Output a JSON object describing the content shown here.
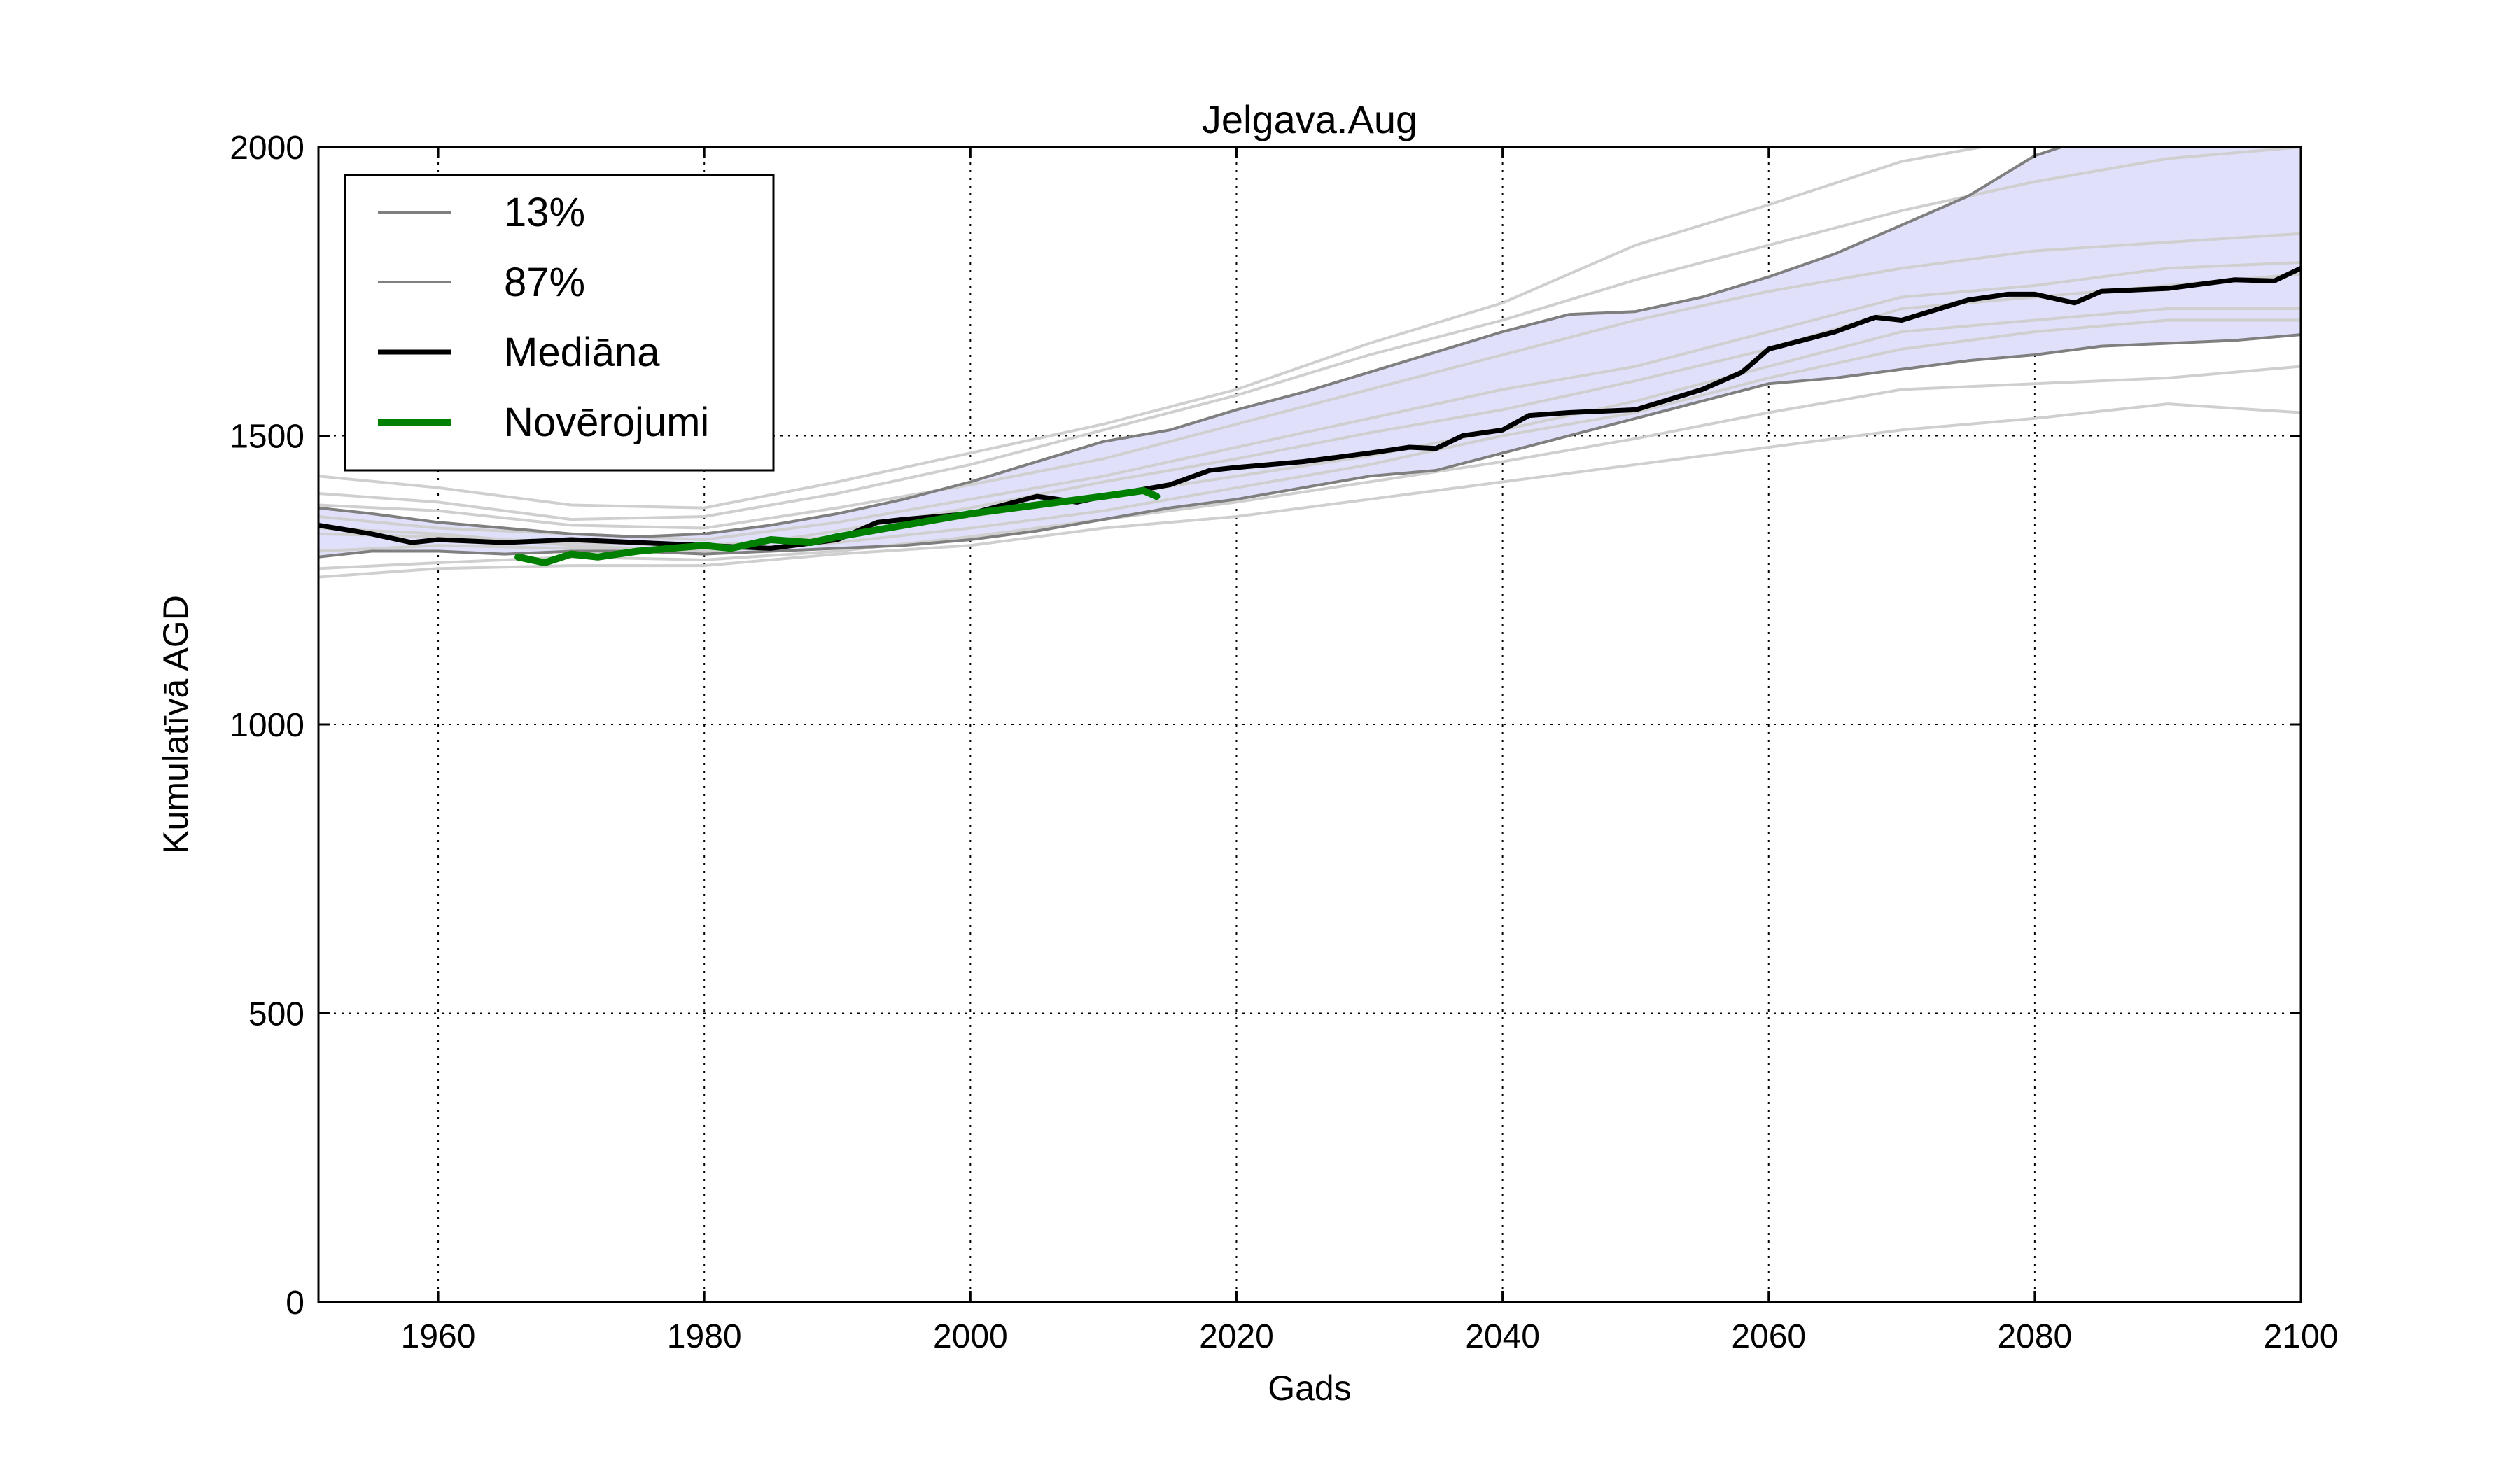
{
  "chart_data": {
    "type": "line",
    "title": "Jelgava.Aug",
    "xlabel": "Gads",
    "ylabel": "Kumulatīvā AGD",
    "xlim": [
      1951,
      2100
    ],
    "ylim": [
      0,
      2000
    ],
    "xticks": [
      1960,
      1980,
      2000,
      2020,
      2040,
      2060,
      2080,
      2100
    ],
    "yticks": [
      0,
      500,
      1000,
      1500,
      2000
    ],
    "grid": true,
    "grid_style": "dotted",
    "legend_position": "upper-left",
    "band_color": "#e0e0fb",
    "series": [
      {
        "name": "13%",
        "color": "#7f7f7f",
        "points": [
          [
            1951,
            1290
          ],
          [
            1955,
            1300
          ],
          [
            1960,
            1300
          ],
          [
            1965,
            1295
          ],
          [
            1970,
            1300
          ],
          [
            1975,
            1300
          ],
          [
            1980,
            1295
          ],
          [
            1985,
            1300
          ],
          [
            1990,
            1305
          ],
          [
            1995,
            1310
          ],
          [
            2000,
            1320
          ],
          [
            2005,
            1335
          ],
          [
            2010,
            1355
          ],
          [
            2015,
            1375
          ],
          [
            2020,
            1390
          ],
          [
            2025,
            1410
          ],
          [
            2030,
            1430
          ],
          [
            2035,
            1440
          ],
          [
            2040,
            1470
          ],
          [
            2045,
            1500
          ],
          [
            2050,
            1530
          ],
          [
            2055,
            1560
          ],
          [
            2060,
            1590
          ],
          [
            2065,
            1600
          ],
          [
            2070,
            1615
          ],
          [
            2075,
            1630
          ],
          [
            2080,
            1640
          ],
          [
            2085,
            1655
          ],
          [
            2090,
            1660
          ],
          [
            2095,
            1665
          ],
          [
            2100,
            1675
          ]
        ]
      },
      {
        "name": "87%",
        "color": "#7f7f7f",
        "points": [
          [
            1951,
            1375
          ],
          [
            1955,
            1365
          ],
          [
            1960,
            1350
          ],
          [
            1965,
            1340
          ],
          [
            1970,
            1330
          ],
          [
            1975,
            1325
          ],
          [
            1980,
            1330
          ],
          [
            1985,
            1345
          ],
          [
            1990,
            1365
          ],
          [
            1995,
            1390
          ],
          [
            2000,
            1420
          ],
          [
            2005,
            1455
          ],
          [
            2010,
            1490
          ],
          [
            2015,
            1510
          ],
          [
            2020,
            1545
          ],
          [
            2025,
            1575
          ],
          [
            2030,
            1610
          ],
          [
            2035,
            1645
          ],
          [
            2040,
            1680
          ],
          [
            2045,
            1710
          ],
          [
            2050,
            1715
          ],
          [
            2055,
            1740
          ],
          [
            2060,
            1775
          ],
          [
            2065,
            1815
          ],
          [
            2070,
            1865
          ],
          [
            2075,
            1915
          ],
          [
            2080,
            1985
          ],
          [
            2082,
            2000
          ]
        ]
      },
      {
        "name": "Mediāna",
        "color": "#000000",
        "points": [
          [
            1951,
            1345
          ],
          [
            1955,
            1330
          ],
          [
            1958,
            1315
          ],
          [
            1960,
            1320
          ],
          [
            1965,
            1315
          ],
          [
            1970,
            1320
          ],
          [
            1975,
            1315
          ],
          [
            1980,
            1310
          ],
          [
            1985,
            1305
          ],
          [
            1990,
            1320
          ],
          [
            1993,
            1350
          ],
          [
            1995,
            1355
          ],
          [
            2000,
            1365
          ],
          [
            2005,
            1395
          ],
          [
            2008,
            1385
          ],
          [
            2010,
            1395
          ],
          [
            2015,
            1415
          ],
          [
            2018,
            1440
          ],
          [
            2020,
            1445
          ],
          [
            2025,
            1455
          ],
          [
            2030,
            1470
          ],
          [
            2033,
            1480
          ],
          [
            2035,
            1478
          ],
          [
            2037,
            1500
          ],
          [
            2040,
            1510
          ],
          [
            2042,
            1535
          ],
          [
            2045,
            1540
          ],
          [
            2050,
            1545
          ],
          [
            2055,
            1580
          ],
          [
            2058,
            1610
          ],
          [
            2060,
            1650
          ],
          [
            2065,
            1680
          ],
          [
            2068,
            1705
          ],
          [
            2070,
            1700
          ],
          [
            2075,
            1735
          ],
          [
            2078,
            1745
          ],
          [
            2080,
            1745
          ],
          [
            2083,
            1730
          ],
          [
            2085,
            1750
          ],
          [
            2090,
            1755
          ],
          [
            2095,
            1770
          ],
          [
            2098,
            1768
          ],
          [
            2100,
            1790
          ]
        ]
      },
      {
        "name": "Novērojumi",
        "color": "#008000",
        "points": [
          [
            1966,
            1290
          ],
          [
            1968,
            1280
          ],
          [
            1970,
            1295
          ],
          [
            1972,
            1290
          ],
          [
            1975,
            1300
          ],
          [
            1980,
            1310
          ],
          [
            1982,
            1305
          ],
          [
            1985,
            1320
          ],
          [
            1988,
            1315
          ],
          [
            1990,
            1325
          ],
          [
            1995,
            1345
          ],
          [
            2000,
            1365
          ],
          [
            2005,
            1380
          ],
          [
            2010,
            1395
          ],
          [
            2013,
            1405
          ],
          [
            2014,
            1395
          ]
        ]
      }
    ],
    "ensemble": [
      [
        [
          1951,
          1430
        ],
        [
          1960,
          1410
        ],
        [
          1970,
          1380
        ],
        [
          1980,
          1375
        ],
        [
          1990,
          1420
        ],
        [
          2000,
          1470
        ],
        [
          2010,
          1520
        ],
        [
          2020,
          1580
        ],
        [
          2030,
          1660
        ],
        [
          2040,
          1730
        ],
        [
          2050,
          1830
        ],
        [
          2060,
          1900
        ],
        [
          2070,
          1975
        ],
        [
          2076,
          2000
        ]
      ],
      [
        [
          1951,
          1400
        ],
        [
          1960,
          1385
        ],
        [
          1970,
          1355
        ],
        [
          1980,
          1360
        ],
        [
          1990,
          1400
        ],
        [
          2000,
          1450
        ],
        [
          2010,
          1510
        ],
        [
          2020,
          1570
        ],
        [
          2030,
          1640
        ],
        [
          2040,
          1700
        ],
        [
          2050,
          1770
        ],
        [
          2060,
          1830
        ],
        [
          2070,
          1890
        ],
        [
          2080,
          1940
        ],
        [
          2090,
          1980
        ],
        [
          2100,
          2000
        ]
      ],
      [
        [
          1951,
          1380
        ],
        [
          1960,
          1370
        ],
        [
          1970,
          1345
        ],
        [
          1980,
          1340
        ],
        [
          1990,
          1375
        ],
        [
          2000,
          1415
        ],
        [
          2010,
          1460
        ],
        [
          2020,
          1520
        ],
        [
          2030,
          1580
        ],
        [
          2040,
          1640
        ],
        [
          2050,
          1700
        ],
        [
          2060,
          1750
        ],
        [
          2070,
          1790
        ],
        [
          2080,
          1820
        ],
        [
          2090,
          1835
        ],
        [
          2100,
          1850
        ]
      ],
      [
        [
          1951,
          1360
        ],
        [
          1960,
          1340
        ],
        [
          1970,
          1330
        ],
        [
          1980,
          1320
        ],
        [
          1990,
          1350
        ],
        [
          2000,
          1390
        ],
        [
          2010,
          1430
        ],
        [
          2020,
          1480
        ],
        [
          2030,
          1530
        ],
        [
          2040,
          1580
        ],
        [
          2050,
          1620
        ],
        [
          2060,
          1680
        ],
        [
          2070,
          1740
        ],
        [
          2080,
          1760
        ],
        [
          2090,
          1790
        ],
        [
          2100,
          1800
        ]
      ],
      [
        [
          1951,
          1330
        ],
        [
          1960,
          1325
        ],
        [
          1970,
          1315
        ],
        [
          1980,
          1310
        ],
        [
          1990,
          1325
        ],
        [
          2000,
          1360
        ],
        [
          2010,
          1395
        ],
        [
          2020,
          1430
        ],
        [
          2030,
          1465
        ],
        [
          2040,
          1510
        ],
        [
          2050,
          1560
        ],
        [
          2060,
          1620
        ],
        [
          2070,
          1680
        ],
        [
          2080,
          1700
        ],
        [
          2090,
          1720
        ],
        [
          2100,
          1720
        ]
      ],
      [
        [
          1951,
          1300
        ],
        [
          1960,
          1310
        ],
        [
          1970,
          1305
        ],
        [
          1980,
          1300
        ],
        [
          1990,
          1315
        ],
        [
          2000,
          1340
        ],
        [
          2010,
          1370
        ],
        [
          2020,
          1410
        ],
        [
          2030,
          1450
        ],
        [
          2040,
          1500
        ],
        [
          2050,
          1540
        ],
        [
          2060,
          1600
        ],
        [
          2070,
          1650
        ],
        [
          2080,
          1680
        ],
        [
          2090,
          1700
        ],
        [
          2100,
          1700
        ]
      ],
      [
        [
          1951,
          1270
        ],
        [
          1960,
          1280
        ],
        [
          1970,
          1290
        ],
        [
          1980,
          1285
        ],
        [
          1990,
          1300
        ],
        [
          2000,
          1325
        ],
        [
          2010,
          1355
        ],
        [
          2020,
          1385
        ],
        [
          2030,
          1420
        ],
        [
          2040,
          1455
        ],
        [
          2050,
          1495
        ],
        [
          2060,
          1540
        ],
        [
          2070,
          1580
        ],
        [
          2080,
          1590
        ],
        [
          2090,
          1600
        ],
        [
          2100,
          1620
        ]
      ],
      [
        [
          1951,
          1255
        ],
        [
          1960,
          1270
        ],
        [
          1970,
          1275
        ],
        [
          1980,
          1275
        ],
        [
          1990,
          1295
        ],
        [
          2000,
          1310
        ],
        [
          2010,
          1340
        ],
        [
          2020,
          1360
        ],
        [
          2030,
          1390
        ],
        [
          2040,
          1420
        ],
        [
          2050,
          1450
        ],
        [
          2060,
          1480
        ],
        [
          2070,
          1510
        ],
        [
          2080,
          1530
        ],
        [
          2090,
          1555
        ],
        [
          2100,
          1540
        ]
      ],
      [
        [
          1951,
          1340
        ],
        [
          1960,
          1330
        ],
        [
          1970,
          1310
        ],
        [
          1980,
          1300
        ],
        [
          1990,
          1335
        ],
        [
          2000,
          1375
        ],
        [
          2010,
          1420
        ],
        [
          2020,
          1460
        ],
        [
          2030,
          1505
        ],
        [
          2040,
          1545
        ],
        [
          2050,
          1595
        ],
        [
          2060,
          1650
        ],
        [
          2070,
          1720
        ],
        [
          2080,
          1740
        ],
        [
          2090,
          1760
        ],
        [
          2100,
          1780
        ]
      ]
    ]
  }
}
